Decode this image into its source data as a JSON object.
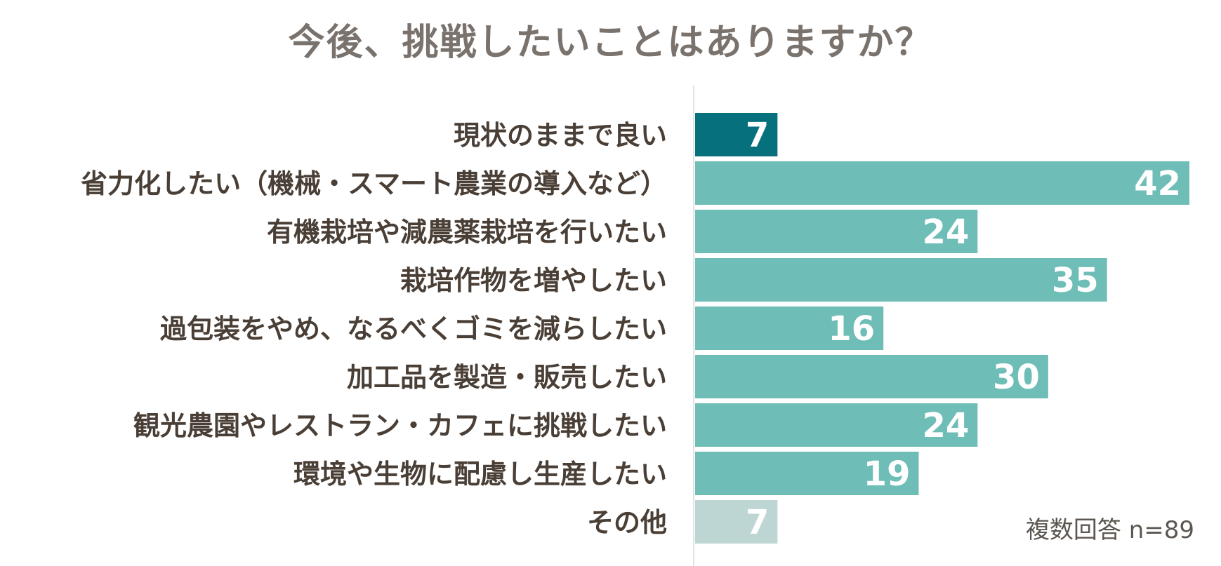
{
  "chart_data": {
    "type": "bar",
    "orientation": "horizontal",
    "title": "今後、挑戦したいことはありますか？",
    "categories": [
      "現状のままで良い",
      "省力化したい（機械・スマート農業の導入など）",
      "有機栽培や減農薬栽培を行いたい",
      "栽培作物を増やしたい",
      "過包装をやめ、なるべくゴミを減らしたい",
      "加工品を製造・販売したい",
      "観光農園やレストラン・カフェに挑戦したい",
      "環境や生物に配慮し生産したい",
      "その他"
    ],
    "values": [
      7,
      42,
      24,
      35,
      16,
      30,
      24,
      19,
      7
    ],
    "bar_colors": [
      "#06717c",
      "#6fbdb7",
      "#6fbdb7",
      "#6fbdb7",
      "#6fbdb7",
      "#6fbdb7",
      "#6fbdb7",
      "#6fbdb7",
      "#bed6d3"
    ],
    "xlim": [
      0,
      42
    ],
    "grid": false,
    "legend": "none",
    "footnote": "複数回答 n=89"
  },
  "colors": {
    "label_text": "#4a3f36",
    "value_text": "#ffffff",
    "title_text": "#7a726c",
    "axis_line": "#e2e2e2"
  }
}
